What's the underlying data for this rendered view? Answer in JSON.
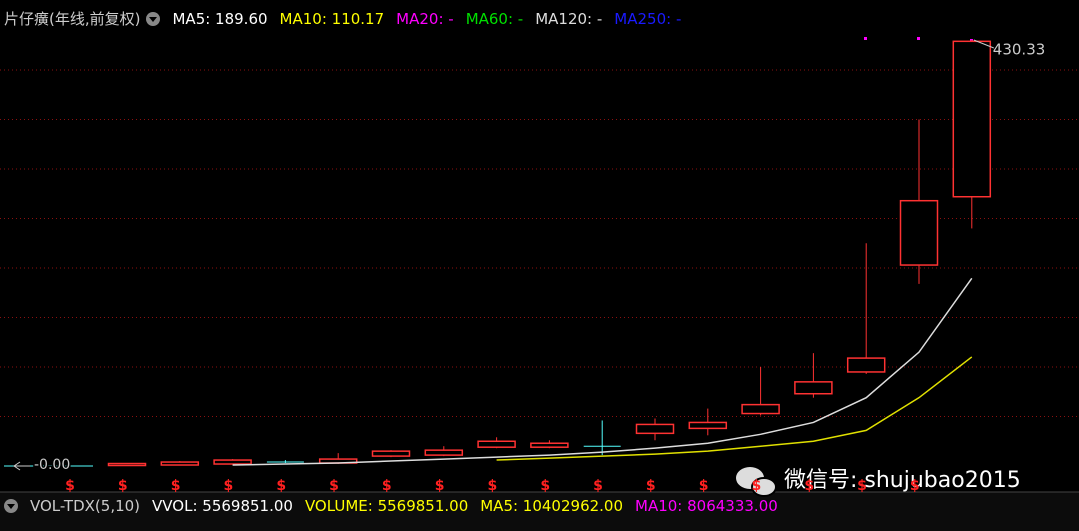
{
  "header": {
    "title": "片仔癀(年线,前复权)",
    "indicators": [
      {
        "text": "MA5: 189.60",
        "color": "#ffffff"
      },
      {
        "text": "MA10: 110.17",
        "color": "#ffff00"
      },
      {
        "text": "MA20: -",
        "color": "#ff00ff"
      },
      {
        "text": "MA60: -",
        "color": "#00e000"
      },
      {
        "text": "MA120: -",
        "color": "#dddddd"
      },
      {
        "text": "MA250: -",
        "color": "#1a1aff"
      }
    ]
  },
  "footer": {
    "title": "VOL-TDX(5,10)",
    "indicators": [
      {
        "text": "VVOL: 5569851.00",
        "color": "#ffffff"
      },
      {
        "text": "VOLUME: 5569851.00",
        "color": "#ffff00"
      },
      {
        "text": "MA5: 10402962.00",
        "color": "#ffff00"
      },
      {
        "text": "MA10: 8064333.00",
        "color": "#ff00ff"
      }
    ]
  },
  "chart_data": {
    "type": "candlestick",
    "categories": [
      null,
      null,
      null,
      null,
      null,
      null,
      null,
      null,
      null,
      null,
      null,
      null,
      null,
      null,
      null,
      null,
      null
    ],
    "open": [
      0.5,
      1,
      2,
      4,
      3,
      10,
      11,
      19,
      19,
      20,
      33,
      38,
      53,
      73,
      95,
      203,
      272
    ],
    "high": [
      3,
      5,
      7,
      6,
      13,
      16,
      20,
      29,
      26,
      46,
      48,
      58,
      100,
      114,
      225,
      350,
      430.33
    ],
    "low": [
      0,
      1,
      2,
      3,
      2,
      9,
      10,
      18,
      18,
      11,
      26,
      31,
      51,
      69,
      93,
      184,
      240
    ],
    "close": [
      2.5,
      4,
      6,
      4,
      7,
      15,
      16,
      25,
      23,
      20,
      42,
      44,
      62,
      85,
      109,
      268,
      429
    ],
    "up_color": "#ff3232",
    "flat_color": "#54ffff",
    "series": [
      {
        "name": "MA5",
        "color": "#dddddd",
        "values": [
          null,
          null,
          1,
          2,
          3,
          5,
          7,
          9,
          11,
          14,
          18,
          23,
          32,
          44,
          69,
          115,
          189.6
        ]
      },
      {
        "name": "MA10",
        "color": "#e0e000",
        "values": [
          null,
          null,
          null,
          null,
          null,
          null,
          null,
          6,
          8,
          10,
          12,
          15,
          20,
          25,
          36,
          69,
          110.17
        ]
      }
    ],
    "ylim": [
      0,
      430.33
    ],
    "yticks": [
      50,
      100,
      150,
      200,
      250,
      300,
      350,
      400
    ],
    "grid": true,
    "high_label": "430.33",
    "low_label": "-0.00",
    "dividend_marker": "$"
  },
  "watermark": "微信号: shujubao2015"
}
